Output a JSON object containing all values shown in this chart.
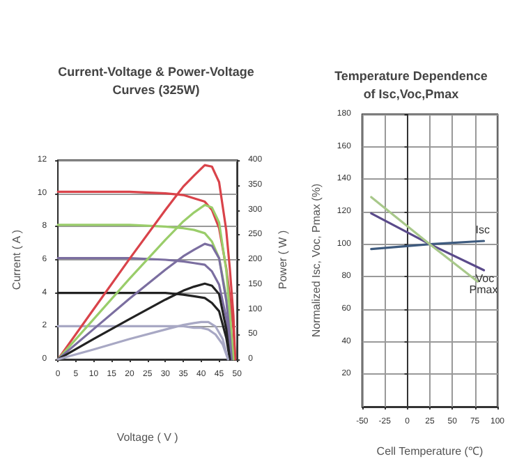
{
  "chart_data": [
    {
      "type": "line",
      "title": "Current-Voltage & Power-Voltage\nCurves (325W)",
      "xlabel": "Voltage ( V )",
      "ylabel": "Current ( A )",
      "y2label": "Power ( W )",
      "xlim": [
        0,
        50
      ],
      "xticks": [
        0,
        5,
        10,
        15,
        20,
        25,
        30,
        35,
        40,
        45,
        50
      ],
      "ylim": [
        0,
        12
      ],
      "yticks": [
        0,
        2,
        4,
        6,
        8,
        10,
        12
      ],
      "y2lim": [
        0,
        400
      ],
      "y2ticks": [
        0,
        50,
        100,
        150,
        200,
        250,
        300,
        350,
        400
      ],
      "grid": "y",
      "marker": "none",
      "line_style": "solid",
      "series": [
        {
          "color": "#d9434a",
          "x": [
            0,
            10,
            20,
            30,
            35,
            38,
            41,
            43,
            45,
            47,
            48,
            49,
            49.5
          ],
          "values": [
            10.1,
            10.1,
            10.1,
            10.0,
            9.9,
            9.7,
            9.5,
            9.0,
            7.9,
            5.5,
            3.8,
            1.8,
            0
          ]
        },
        {
          "color": "#9acd6a",
          "x": [
            0,
            10,
            20,
            30,
            35,
            38,
            41,
            43,
            45,
            47,
            48,
            49
          ],
          "values": [
            8.1,
            8.1,
            8.1,
            8.0,
            7.9,
            7.8,
            7.6,
            7.1,
            6.1,
            3.8,
            2.0,
            0
          ]
        },
        {
          "color": "#7b6ea0",
          "x": [
            0,
            10,
            20,
            30,
            35,
            38,
            41,
            43,
            45,
            47,
            48,
            48.5
          ],
          "values": [
            6.1,
            6.1,
            6.1,
            6.0,
            5.9,
            5.8,
            5.7,
            5.3,
            4.5,
            2.5,
            1.0,
            0
          ]
        },
        {
          "color": "#222222",
          "x": [
            0,
            10,
            20,
            30,
            35,
            38,
            41,
            43,
            45,
            47,
            48
          ],
          "values": [
            4.0,
            4.0,
            4.0,
            4.0,
            3.9,
            3.8,
            3.7,
            3.4,
            2.9,
            1.3,
            0
          ]
        },
        {
          "color": "#a8a8c4",
          "x": [
            0,
            10,
            20,
            30,
            35,
            38,
            40,
            42,
            44,
            46,
            47.5
          ],
          "values": [
            2.0,
            2.0,
            2.0,
            2.0,
            2.0,
            1.9,
            1.9,
            1.8,
            1.5,
            0.9,
            0
          ]
        },
        {
          "color": "#d9434a",
          "axis": "y2",
          "x": [
            0,
            10,
            20,
            30,
            35,
            38,
            41,
            43,
            45,
            47,
            48,
            49,
            49.5
          ],
          "values": [
            0,
            101,
            202,
            300,
            347,
            369,
            390,
            387,
            356,
            259,
            182,
            88,
            0
          ]
        },
        {
          "color": "#9acd6a",
          "axis": "y2",
          "x": [
            0,
            10,
            20,
            30,
            35,
            38,
            41,
            43,
            45,
            47,
            48,
            49
          ],
          "values": [
            0,
            81,
            162,
            240,
            277,
            295,
            310,
            305,
            275,
            179,
            96,
            0
          ]
        },
        {
          "color": "#7b6ea0",
          "axis": "y2",
          "x": [
            0,
            10,
            20,
            30,
            35,
            38,
            41,
            43,
            45,
            47,
            48,
            48.5
          ],
          "values": [
            0,
            61,
            122,
            180,
            207,
            220,
            232,
            228,
            203,
            118,
            48,
            0
          ]
        },
        {
          "color": "#222222",
          "axis": "y2",
          "x": [
            0,
            10,
            20,
            30,
            35,
            38,
            41,
            43,
            45,
            47,
            48
          ],
          "values": [
            0,
            41,
            81,
            120,
            138,
            146,
            152,
            148,
            131,
            61,
            0
          ]
        },
        {
          "color": "#a8a8c4",
          "axis": "y2",
          "x": [
            0,
            10,
            20,
            30,
            35,
            38,
            40,
            42,
            44,
            46,
            47.5
          ],
          "values": [
            0,
            20,
            41,
            60,
            69,
            73,
            75,
            75,
            66,
            41,
            0
          ]
        }
      ]
    },
    {
      "type": "line",
      "title": "Temperature Dependence\nof Isc,Voc,Pmax",
      "xlabel": "Cell Temperature (℃)",
      "ylabel": "Normalized Isc, Voc, Pmax (%)",
      "xlim": [
        -50,
        100
      ],
      "xticks": [
        -50,
        -25,
        0,
        25,
        50,
        75,
        100
      ],
      "ylim": [
        0,
        180
      ],
      "yticks": [
        {
          "value": 0,
          "label": null
        },
        20,
        40,
        60,
        80,
        100,
        120,
        140,
        160,
        180
      ],
      "grid": true,
      "marker": "none",
      "line_style": "solid",
      "series": [
        {
          "name": "Isc",
          "color": "#3d5a7e",
          "x": [
            -40,
            25,
            85
          ],
          "values": [
            97,
            100,
            102
          ]
        },
        {
          "name": "Voc",
          "color": "#5a4a8a",
          "x": [
            -40,
            25,
            85
          ],
          "values": [
            119,
            100,
            84
          ]
        },
        {
          "name": "Pmax",
          "color": "#a8c88a",
          "x": [
            -40,
            25,
            78
          ],
          "values": [
            129,
            100,
            77
          ]
        }
      ]
    }
  ]
}
